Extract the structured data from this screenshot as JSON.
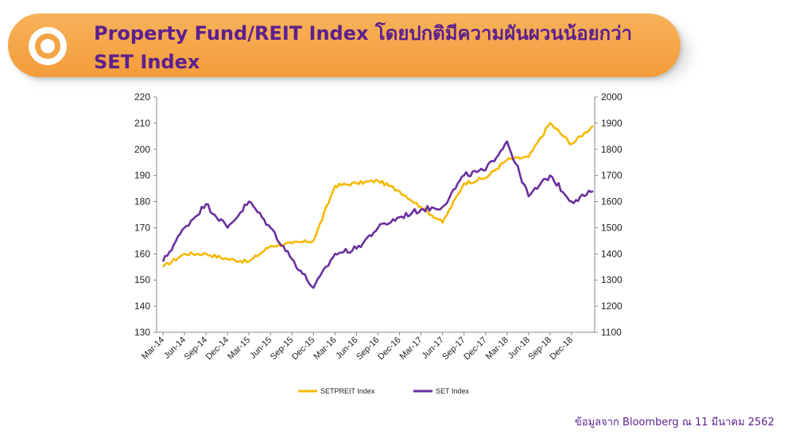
{
  "header": {
    "title_line1": "Property Fund/REIT Index โดยปกติมีความผันผวนน้อยกว่า",
    "title_line2": "SET Index",
    "accent": "#f5a444",
    "title_color": "#5b1f8f",
    "icon": "ring-icon"
  },
  "source": "ข้อมูลจาก Bloomberg ณ 11 มีนาคม 2562",
  "chart_data": {
    "type": "line",
    "title": "",
    "x": [
      "Mar-14",
      "Jun-14",
      "Sep-14",
      "Dec-14",
      "Mar-15",
      "Jun-15",
      "Sep-15",
      "Dec-15",
      "Mar-16",
      "Jun-16",
      "Sep-16",
      "Dec-16",
      "Mar-17",
      "Jun-17",
      "Sep-17",
      "Dec-17",
      "Mar-18",
      "Jun-18",
      "Sep-18",
      "Dec-18",
      "Mar-19"
    ],
    "x_tick_labels": [
      "Mar-14",
      "Jun-14",
      "Sep-14",
      "Dec-14",
      "Mar-15",
      "Jun-15",
      "Sep-15",
      "Dec-15",
      "Mar-16",
      "Jun-16",
      "Sep-16",
      "Dec-16",
      "Mar-17",
      "Jun-17",
      "Sep-17",
      "Dec-17",
      "Mar-18",
      "Jun-18",
      "Sep-18",
      "Dec-18"
    ],
    "y_left_range": [
      130,
      220
    ],
    "y_left_ticks": [
      130,
      140,
      150,
      160,
      170,
      180,
      190,
      200,
      210,
      220
    ],
    "y_right_range": [
      1100,
      2000
    ],
    "y_right_ticks": [
      1100,
      1200,
      1300,
      1400,
      1500,
      1600,
      1700,
      1800,
      1900,
      2000
    ],
    "grid": false,
    "legend_position": "bottom",
    "series": [
      {
        "name": "SETPREIT Index",
        "color": "#f5b800",
        "axis": "left",
        "values": [
          155,
          160,
          160,
          158,
          157,
          163,
          164,
          165,
          186,
          187,
          188,
          184,
          178,
          172,
          187,
          189,
          196,
          197,
          210,
          202,
          209
        ]
      },
      {
        "name": "SET Index",
        "color": "#6a2fa0",
        "axis": "right",
        "values": [
          1370,
          1500,
          1590,
          1500,
          1600,
          1500,
          1380,
          1270,
          1400,
          1420,
          1500,
          1540,
          1570,
          1580,
          1700,
          1720,
          1830,
          1620,
          1700,
          1600,
          1640
        ]
      }
    ]
  }
}
